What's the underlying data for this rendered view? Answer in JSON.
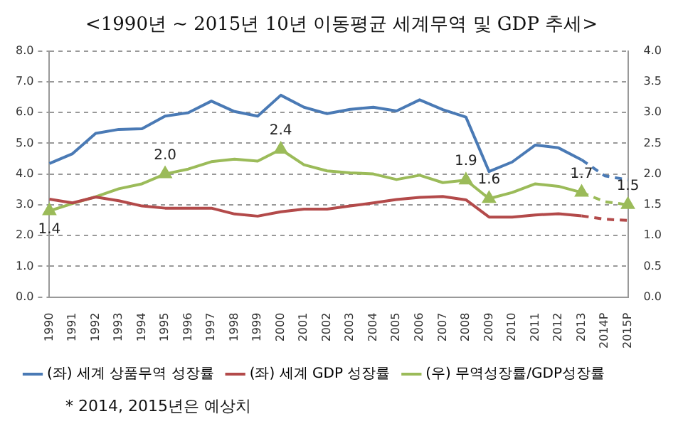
{
  "chart_data": {
    "type": "line",
    "title": "<1990년 ~ 2015년 10년 이동평균 세계무역 및 GDP 추세>",
    "categories": [
      "1990",
      "1991",
      "1992",
      "1993",
      "1994",
      "1995",
      "1996",
      "1997",
      "1998",
      "1999",
      "2000",
      "2001",
      "2002",
      "2003",
      "2004",
      "2005",
      "2006",
      "2007",
      "2008",
      "2009",
      "2010",
      "2011",
      "2012",
      "2013",
      "2014P",
      "2015P"
    ],
    "series": [
      {
        "name": "(좌) 세계 상품무역 성장률",
        "color": "#4a7ab5",
        "values": [
          4.34,
          4.66,
          5.32,
          5.45,
          5.47,
          5.88,
          5.99,
          6.37,
          6.03,
          5.88,
          6.56,
          6.17,
          5.96,
          6.1,
          6.17,
          6.05,
          6.41,
          6.09,
          5.85,
          4.08,
          4.39,
          4.94,
          4.85,
          4.46,
          null,
          null
        ]
      },
      {
        "color": "#4a7ab5",
        "line_style": "dashed",
        "values": [
          null,
          null,
          null,
          null,
          null,
          null,
          null,
          null,
          null,
          null,
          null,
          null,
          null,
          null,
          null,
          null,
          null,
          null,
          null,
          null,
          null,
          null,
          null,
          4.46,
          3.94,
          3.81
        ]
      },
      {
        "name": "(좌) 세계 GDP 성장률",
        "color": "#b34a4a",
        "values": [
          3.18,
          3.06,
          3.25,
          3.13,
          2.96,
          2.89,
          2.89,
          2.89,
          2.7,
          2.63,
          2.77,
          2.86,
          2.86,
          2.96,
          3.06,
          3.17,
          3.24,
          3.27,
          3.16,
          2.6,
          2.6,
          2.67,
          2.71,
          2.64,
          null,
          null
        ]
      },
      {
        "color": "#b34a4a",
        "line_style": "dashed",
        "values": [
          null,
          null,
          null,
          null,
          null,
          null,
          null,
          null,
          null,
          null,
          null,
          null,
          null,
          null,
          null,
          null,
          null,
          null,
          null,
          null,
          null,
          null,
          null,
          2.64,
          2.53,
          2.49
        ]
      },
      {
        "name": "(우) 무역성장률/GDP성장률",
        "color": "#9bbb59",
        "axis": "y2",
        "values": [
          1.4,
          1.52,
          1.63,
          1.76,
          1.84,
          2.0,
          2.08,
          2.2,
          2.24,
          2.21,
          2.4,
          2.15,
          2.05,
          2.02,
          2.0,
          1.91,
          1.98,
          1.86,
          1.9,
          1.6,
          1.7,
          1.84,
          1.8,
          1.7,
          null,
          null
        ]
      },
      {
        "color": "#9bbb59",
        "axis": "y2",
        "line_style": "dashed",
        "values": [
          null,
          null,
          null,
          null,
          null,
          null,
          null,
          null,
          null,
          null,
          null,
          null,
          null,
          null,
          null,
          null,
          null,
          null,
          null,
          null,
          null,
          null,
          null,
          1.7,
          1.55,
          1.5
        ]
      },
      {
        "type": "scatter",
        "color": "#9bbb59",
        "axis": "y2",
        "marker": "triangle",
        "values": [
          1.4,
          null,
          null,
          null,
          null,
          2.0,
          null,
          null,
          null,
          null,
          2.4,
          null,
          null,
          null,
          null,
          null,
          null,
          null,
          1.9,
          1.6,
          null,
          null,
          null,
          1.7,
          null,
          1.5
        ],
        "value_labels": [
          "1.4",
          null,
          null,
          null,
          null,
          "2.0",
          null,
          null,
          null,
          null,
          "2.4",
          null,
          null,
          null,
          null,
          null,
          null,
          null,
          "1.9",
          "1.6",
          null,
          null,
          null,
          "1.7",
          null,
          "1.5"
        ]
      }
    ],
    "ylim": [
      0,
      8
    ],
    "yticks": [
      {
        "value": 0,
        "label": "0.0"
      },
      {
        "value": 1,
        "label": "1.0"
      },
      {
        "value": 2,
        "label": "2.0"
      },
      {
        "value": 3,
        "label": "3.0"
      },
      {
        "value": 4,
        "label": "4.0"
      },
      {
        "value": 5,
        "label": "5.0"
      },
      {
        "value": 6,
        "label": "6.0"
      },
      {
        "value": 7,
        "label": "7.0"
      },
      {
        "value": 8,
        "label": "8.0"
      }
    ],
    "y2lim": [
      0,
      4
    ],
    "y2ticks": [
      {
        "value": 0,
        "label": "0.0"
      },
      {
        "value": 0.5,
        "label": "0.5"
      },
      {
        "value": 1,
        "label": "1.0"
      },
      {
        "value": 1.5,
        "label": "1.5"
      },
      {
        "value": 2,
        "label": "2.0"
      },
      {
        "value": 2.5,
        "label": "2.5"
      },
      {
        "value": 3,
        "label": "3.0"
      },
      {
        "value": 3.5,
        "label": "3.5"
      },
      {
        "value": 4,
        "label": "4.0"
      }
    ],
    "grid": "y",
    "legend": "bottom",
    "annotations": [
      "* 2014, 2015년은 예상치"
    ]
  }
}
